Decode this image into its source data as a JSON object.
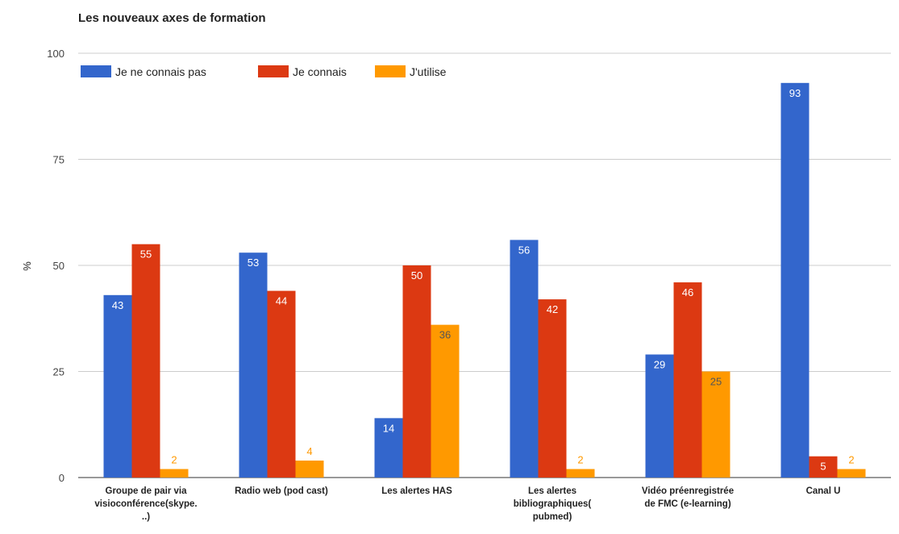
{
  "chart_data": {
    "type": "bar",
    "title": "Les nouveaux axes de formation",
    "xlabel": "",
    "ylabel": "%",
    "ylim": [
      0,
      100
    ],
    "yticks": [
      0,
      25,
      50,
      75,
      100
    ],
    "grid": true,
    "legend_position": "top-left",
    "categories": [
      [
        "Groupe de pair via",
        "visioconférence(skype.",
        "..)"
      ],
      [
        "Radio web (pod cast)"
      ],
      [
        "Les alertes HAS"
      ],
      [
        "Les alertes",
        "bibliographiques(",
        "pubmed)"
      ],
      [
        "Vidéo préenregistrée",
        "de FMC (e-learning)"
      ],
      [
        "Canal U"
      ]
    ],
    "series": [
      {
        "name": "Je ne connais pas",
        "color": "#3366cc",
        "values": [
          43,
          53,
          14,
          56,
          29,
          93
        ]
      },
      {
        "name": "Je connais",
        "color": "#dc3912",
        "values": [
          55,
          44,
          50,
          42,
          46,
          5
        ]
      },
      {
        "name": "J'utilise",
        "color": "#ff9900",
        "values": [
          2,
          4,
          36,
          2,
          25,
          2
        ]
      }
    ]
  }
}
